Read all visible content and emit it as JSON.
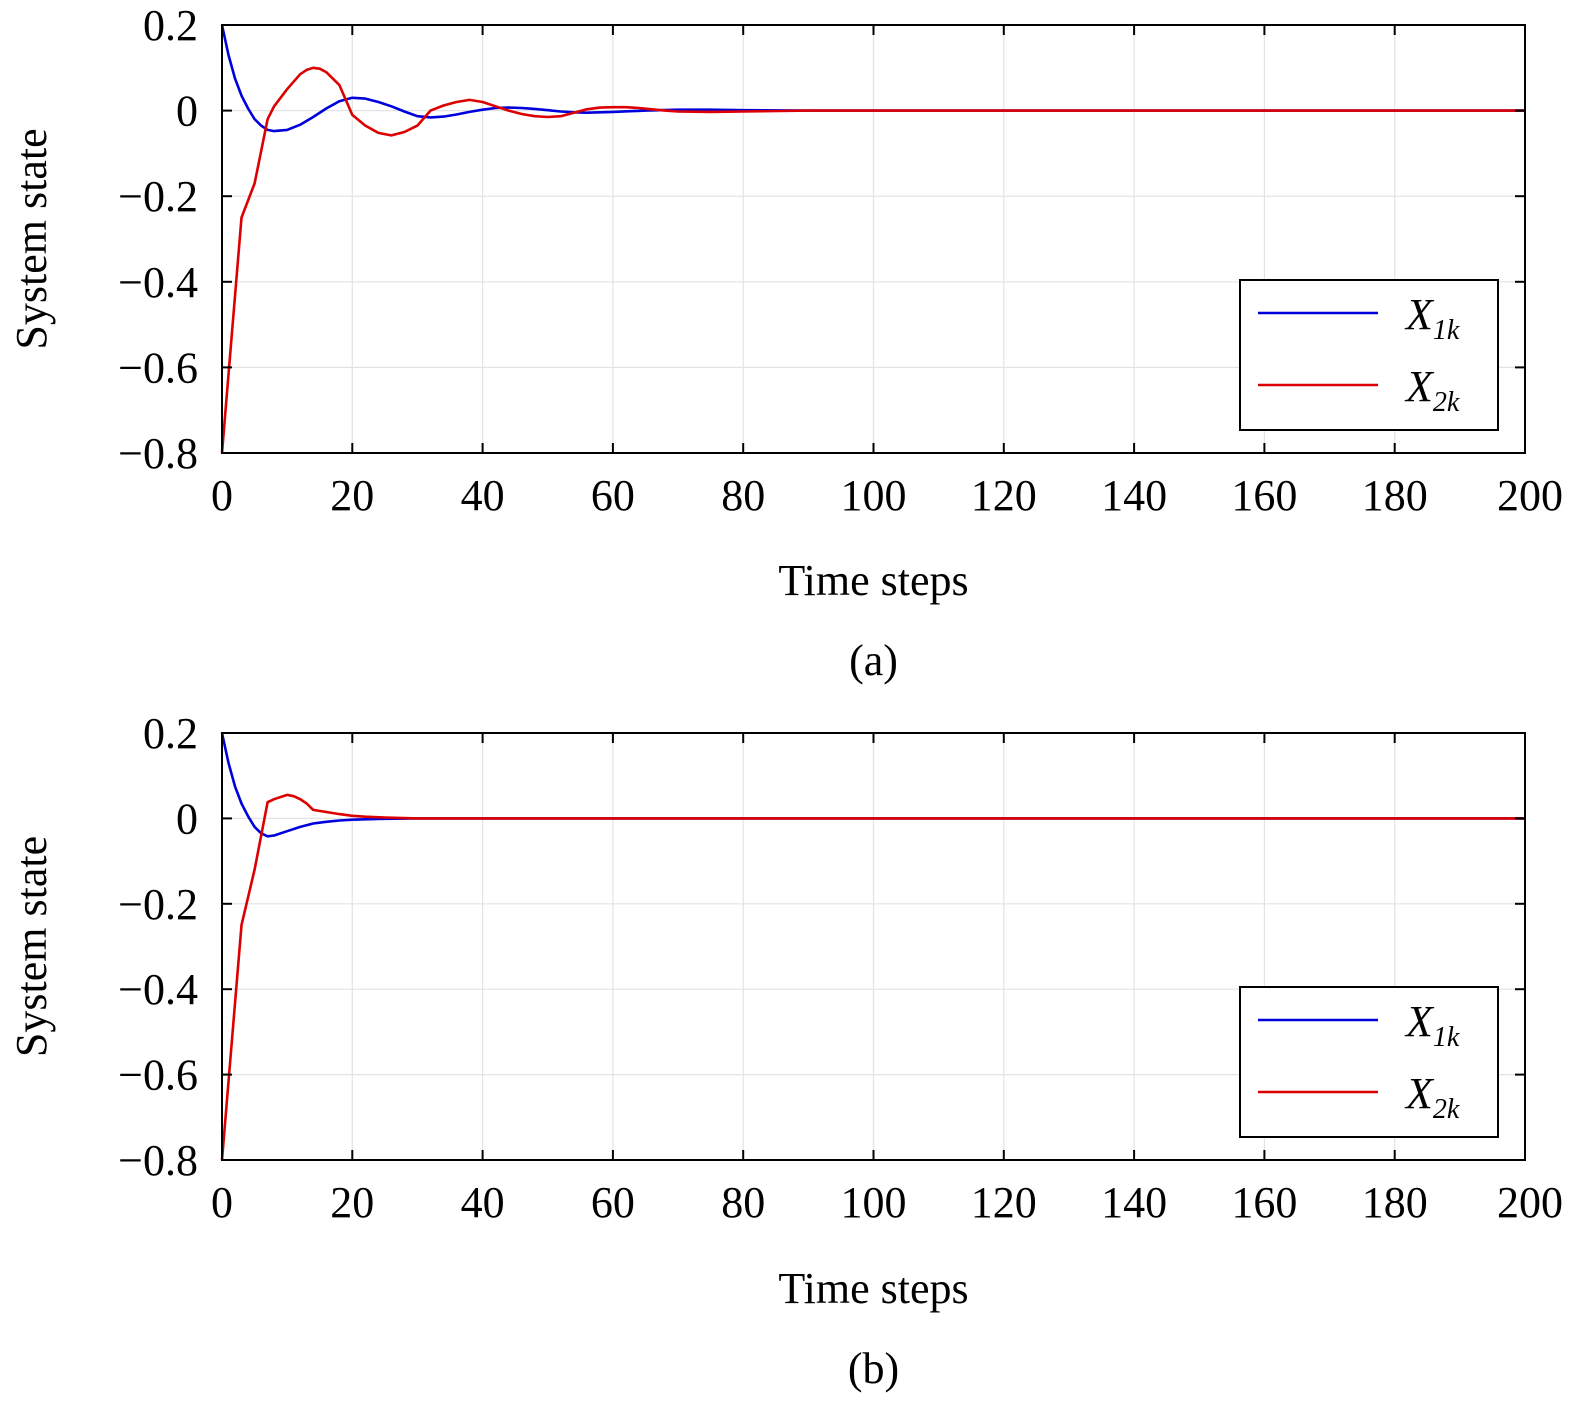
{
  "chart_data": [
    {
      "type": "line",
      "caption": "(a)",
      "xlabel": "Time steps",
      "ylabel": "System state",
      "xlim": [
        0,
        200
      ],
      "ylim": [
        -0.8,
        0.2
      ],
      "xticks": [
        0,
        20,
        40,
        60,
        80,
        100,
        120,
        140,
        160,
        180,
        200
      ],
      "yticks": [
        0.2,
        0,
        -0.2,
        -0.4,
        -0.6,
        -0.8
      ],
      "xtick_labels": [
        "0",
        "20",
        "40",
        "60",
        "80",
        "100",
        "120",
        "140",
        "160",
        "180",
        "200"
      ],
      "ytick_labels": [
        "0.2",
        "0",
        "−0.2",
        "−0.4",
        "−0.6",
        "−0.8"
      ],
      "grid": true,
      "legend_position": "lower-right",
      "series": [
        {
          "name": "X1k",
          "legend_main": "X",
          "legend_sub": "1k",
          "color": "#0000dd",
          "x": [
            0,
            1,
            2,
            3,
            4,
            5,
            6,
            7,
            8,
            10,
            12,
            14,
            16,
            18,
            20,
            22,
            24,
            26,
            28,
            30,
            32,
            34,
            36,
            38,
            40,
            42,
            44,
            46,
            48,
            50,
            52,
            54,
            56,
            58,
            60,
            65,
            70,
            75,
            80,
            90,
            100,
            120,
            150,
            200
          ],
          "y": [
            0.2,
            0.13,
            0.075,
            0.035,
            0.005,
            -0.02,
            -0.035,
            -0.045,
            -0.048,
            -0.045,
            -0.033,
            -0.015,
            0.005,
            0.022,
            0.03,
            0.028,
            0.02,
            0.01,
            -0.002,
            -0.013,
            -0.016,
            -0.014,
            -0.009,
            -0.003,
            0.002,
            0.006,
            0.007,
            0.006,
            0.004,
            0.001,
            -0.002,
            -0.004,
            -0.005,
            -0.004,
            -0.003,
            0.0,
            0.002,
            0.002,
            0.001,
            0.0,
            0.0,
            0.0,
            0.0,
            0.0
          ]
        },
        {
          "name": "X2k",
          "legend_main": "X",
          "legend_sub": "2k",
          "color": "#dd0000",
          "x": [
            0,
            3,
            5,
            7,
            8,
            10,
            12,
            13,
            14,
            15,
            16,
            18,
            20,
            22,
            24,
            26,
            28,
            30,
            32,
            34,
            36,
            38,
            40,
            42,
            44,
            46,
            48,
            50,
            52,
            54,
            56,
            58,
            60,
            62,
            64,
            66,
            68,
            70,
            75,
            80,
            90,
            100,
            120,
            150,
            200
          ],
          "y": [
            -0.8,
            -0.25,
            -0.17,
            -0.02,
            0.01,
            0.05,
            0.085,
            0.095,
            0.1,
            0.098,
            0.09,
            0.06,
            -0.01,
            -0.035,
            -0.052,
            -0.058,
            -0.05,
            -0.035,
            0.0,
            0.012,
            0.02,
            0.025,
            0.02,
            0.01,
            0.0,
            -0.008,
            -0.013,
            -0.015,
            -0.013,
            -0.005,
            0.003,
            0.007,
            0.008,
            0.008,
            0.006,
            0.003,
            0.0,
            -0.002,
            -0.003,
            -0.002,
            0.0,
            0.0,
            0.0,
            0.0,
            0.0
          ]
        }
      ]
    },
    {
      "type": "line",
      "caption": "(b)",
      "xlabel": "Time steps",
      "ylabel": "System state",
      "xlim": [
        0,
        200
      ],
      "ylim": [
        -0.8,
        0.2
      ],
      "xticks": [
        0,
        20,
        40,
        60,
        80,
        100,
        120,
        140,
        160,
        180,
        200
      ],
      "yticks": [
        0.2,
        0,
        -0.2,
        -0.4,
        -0.6,
        -0.8
      ],
      "xtick_labels": [
        "0",
        "20",
        "40",
        "60",
        "80",
        "100",
        "120",
        "140",
        "160",
        "180",
        "200"
      ],
      "ytick_labels": [
        "0.2",
        "0",
        "−0.2",
        "−0.4",
        "−0.6",
        "−0.8"
      ],
      "grid": true,
      "legend_position": "lower-right",
      "series": [
        {
          "name": "X1k",
          "legend_main": "X",
          "legend_sub": "1k",
          "color": "#0000dd",
          "x": [
            0,
            1,
            2,
            3,
            4,
            5,
            6,
            7,
            8,
            10,
            12,
            14,
            16,
            18,
            20,
            22,
            25,
            30,
            40,
            200
          ],
          "y": [
            0.2,
            0.13,
            0.075,
            0.035,
            0.005,
            -0.02,
            -0.035,
            -0.042,
            -0.04,
            -0.03,
            -0.02,
            -0.012,
            -0.008,
            -0.005,
            -0.003,
            -0.002,
            -0.001,
            0.0,
            0.0,
            0.0
          ]
        },
        {
          "name": "X2k",
          "legend_main": "X",
          "legend_sub": "2k",
          "color": "#dd0000",
          "x": [
            0,
            3,
            5,
            7,
            8,
            10,
            11,
            12,
            13,
            14,
            16,
            18,
            20,
            22,
            25,
            30,
            40,
            200
          ],
          "y": [
            -0.8,
            -0.25,
            -0.12,
            0.038,
            0.045,
            0.055,
            0.052,
            0.045,
            0.035,
            0.02,
            0.015,
            0.01,
            0.006,
            0.004,
            0.002,
            0.0,
            0.0,
            0.0
          ]
        }
      ]
    }
  ]
}
